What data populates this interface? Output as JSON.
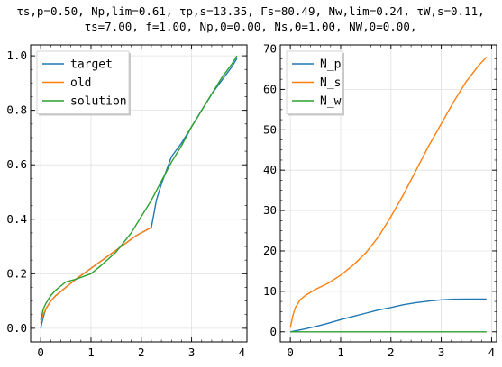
{
  "title": {
    "line1": "τs,p=0.50, Np,lim=0.61, τp,s=13.35, Γs=80.49, Nw,lim=0.24, τW,s=0.11,",
    "line2": "τs=7.00, f=1.00, Np,0=0.00, Ns,0=1.00, NW,0=0.00,"
  },
  "colors": {
    "blue": "#1f77b4",
    "orange": "#ff7f0e",
    "green": "#2ca02c",
    "grid": "#e0e0e0"
  },
  "chart_data": [
    {
      "type": "line",
      "xlim": [
        -0.2,
        4.1
      ],
      "ylim": [
        -0.05,
        1.04
      ],
      "xticks": [
        "0",
        "1",
        "2",
        "3",
        "4"
      ],
      "yticks": [
        "0.0",
        "0.2",
        "0.4",
        "0.6",
        "0.8",
        "1.0"
      ],
      "grid": true,
      "legend_position": "top-left",
      "series": [
        {
          "name": "target",
          "color": "#1f77b4",
          "x": [
            0,
            0.05,
            0.1,
            0.2,
            0.3,
            0.5,
            0.7,
            1.0,
            1.3,
            1.6,
            1.9,
            2.1,
            2.2,
            2.25,
            2.3,
            2.4,
            2.5,
            2.6,
            2.8,
            3.0,
            3.2,
            3.4,
            3.6,
            3.8,
            3.9
          ],
          "y": [
            0.0,
            0.04,
            0.07,
            0.1,
            0.12,
            0.15,
            0.18,
            0.22,
            0.26,
            0.3,
            0.34,
            0.36,
            0.37,
            0.42,
            0.47,
            0.53,
            0.58,
            0.63,
            0.68,
            0.74,
            0.8,
            0.86,
            0.91,
            0.96,
            0.99
          ]
        },
        {
          "name": "old",
          "color": "#ff7f0e",
          "x": [
            0,
            0.05,
            0.1,
            0.2,
            0.3,
            0.5,
            0.7,
            1.0,
            1.3,
            1.6,
            1.9,
            2.1,
            2.2
          ],
          "y": [
            0.02,
            0.05,
            0.07,
            0.1,
            0.12,
            0.15,
            0.18,
            0.22,
            0.26,
            0.3,
            0.34,
            0.36,
            0.37
          ]
        },
        {
          "name": "solution",
          "color": "#2ca02c",
          "x": [
            0,
            0.05,
            0.1,
            0.2,
            0.3,
            0.5,
            0.7,
            1.0,
            1.2,
            1.5,
            1.8,
            2.0,
            2.2,
            2.4,
            2.6,
            2.8,
            3.0,
            3.2,
            3.4,
            3.6,
            3.8,
            3.9
          ],
          "y": [
            0.03,
            0.07,
            0.09,
            0.12,
            0.14,
            0.17,
            0.18,
            0.2,
            0.23,
            0.28,
            0.35,
            0.41,
            0.47,
            0.54,
            0.61,
            0.67,
            0.74,
            0.8,
            0.86,
            0.92,
            0.97,
            1.0
          ]
        }
      ]
    },
    {
      "type": "line",
      "xlim": [
        -0.2,
        4.1
      ],
      "ylim": [
        -2.5,
        71
      ],
      "xticks": [
        "0",
        "1",
        "2",
        "3",
        "4"
      ],
      "yticks": [
        "0",
        "10",
        "20",
        "30",
        "40",
        "50",
        "60",
        "70"
      ],
      "grid": true,
      "legend_position": "top-left",
      "series": [
        {
          "name": "N_p",
          "color": "#1f77b4",
          "x": [
            0,
            0.25,
            0.5,
            0.75,
            1.0,
            1.25,
            1.5,
            1.75,
            2.0,
            2.25,
            2.5,
            2.75,
            3.0,
            3.25,
            3.5,
            3.75,
            3.9
          ],
          "y": [
            0.0,
            0.6,
            1.3,
            2.1,
            3.0,
            3.8,
            4.6,
            5.4,
            6.0,
            6.7,
            7.2,
            7.6,
            7.9,
            8.05,
            8.1,
            8.1,
            8.1
          ]
        },
        {
          "name": "N_s",
          "color": "#ff7f0e",
          "x": [
            0,
            0.05,
            0.1,
            0.2,
            0.3,
            0.5,
            0.75,
            1.0,
            1.25,
            1.5,
            1.75,
            2.0,
            2.25,
            2.5,
            2.75,
            3.0,
            3.25,
            3.5,
            3.75,
            3.9
          ],
          "y": [
            1.0,
            4.0,
            6.0,
            8.0,
            9.0,
            10.5,
            12.0,
            14.0,
            16.5,
            19.5,
            23.5,
            28.5,
            34.0,
            40.0,
            46.0,
            51.5,
            57.0,
            62.0,
            66.0,
            68.0
          ]
        },
        {
          "name": "N_w",
          "color": "#2ca02c",
          "x": [
            0,
            1,
            2,
            3,
            3.9
          ],
          "y": [
            0.0,
            0.0,
            0.0,
            0.0,
            0.0
          ]
        }
      ]
    }
  ]
}
